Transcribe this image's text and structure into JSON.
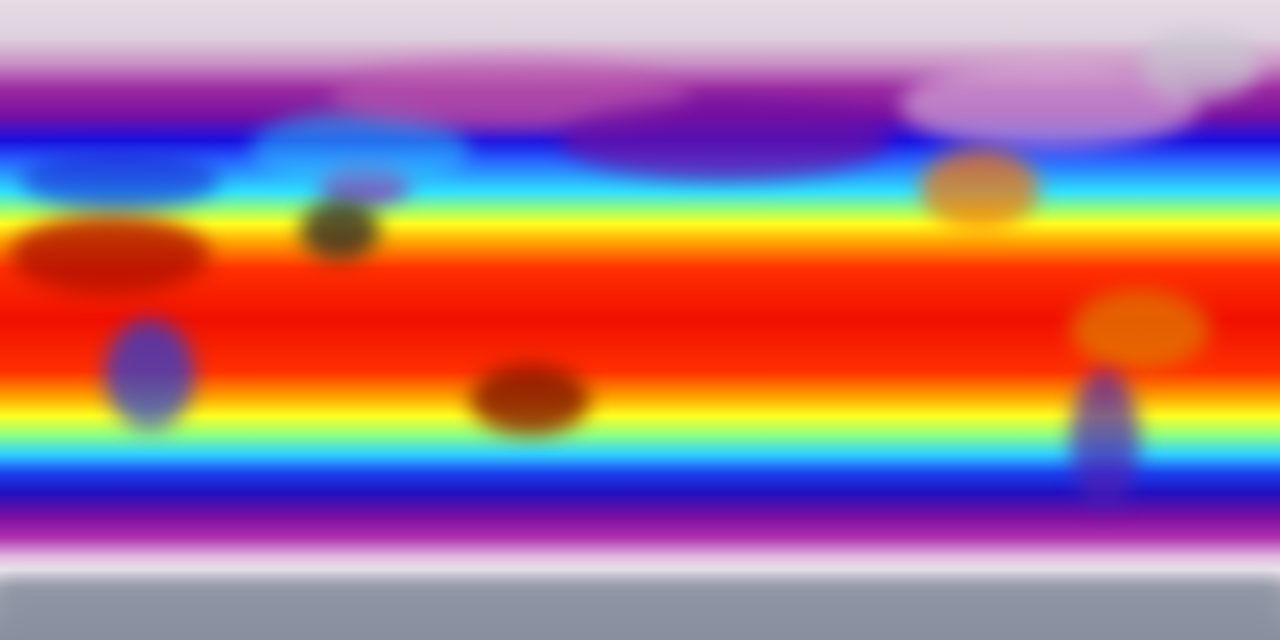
{
  "map": {
    "projection": "equirectangular",
    "variable_shown_by_color": "temperature",
    "palette": [
      "#e6dde6",
      "#9a2aa0",
      "#1a10e0",
      "#30e0ff",
      "#ffff20",
      "#ffa000",
      "#f01000",
      "#3a2a2a"
    ]
  }
}
